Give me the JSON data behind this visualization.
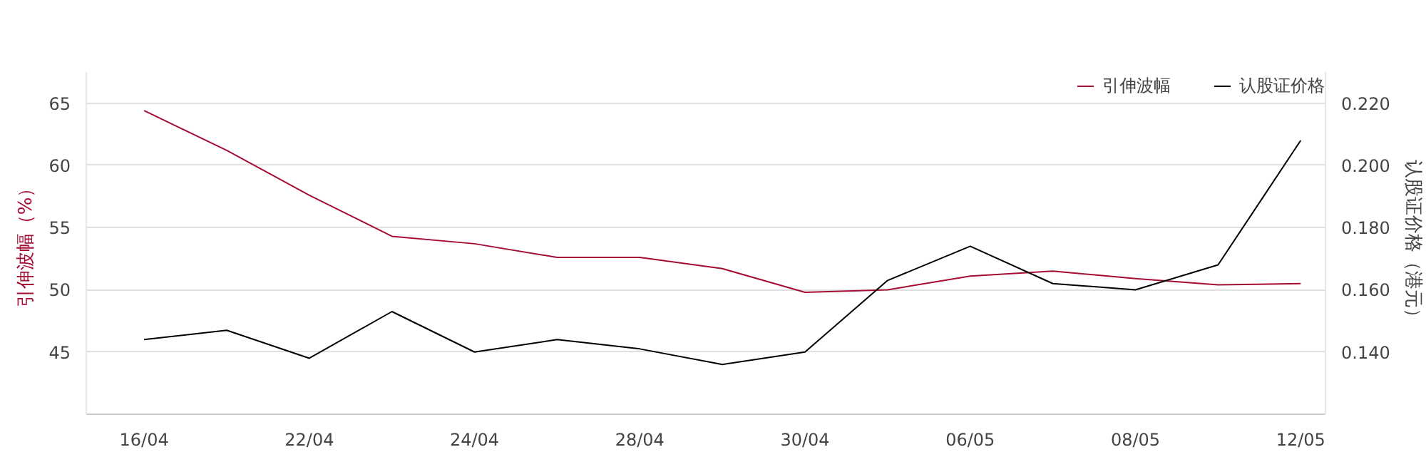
{
  "chart_data": {
    "type": "line",
    "categories": [
      "16/04",
      null,
      "22/04",
      null,
      "24/04",
      null,
      "28/04",
      null,
      "30/04",
      null,
      "06/05",
      null,
      "08/05",
      null,
      "12/05"
    ],
    "series": [
      {
        "name": "引伸波幅",
        "color": "#a50d34",
        "values": [
          64.4,
          61.2,
          57.6,
          54.3,
          53.7,
          52.6,
          52.6,
          51.7,
          49.8,
          50.0,
          51.1,
          51.5,
          50.9,
          50.4,
          50.5
        ]
      },
      {
        "name": "认股证价格",
        "color": "#000000",
        "axis": "y2",
        "values": [
          0.144,
          0.147,
          0.138,
          0.153,
          0.14,
          0.144,
          0.141,
          0.136,
          0.14,
          0.163,
          0.174,
          0.162,
          0.16,
          0.168,
          0.208
        ]
      }
    ],
    "ylabel": "引伸波幅（%）",
    "y2label": "认股证价格（港元）",
    "ylim": [
      40,
      67.5
    ],
    "yticks": [
      45,
      50,
      55,
      60,
      65
    ],
    "y2lim": [
      0.12,
      0.23
    ],
    "y2ticks": [
      {
        "value": 0.14,
        "label": "0.140"
      },
      {
        "value": 0.16,
        "label": "0.160"
      },
      {
        "value": 0.18,
        "label": "0.180"
      },
      {
        "value": 0.2,
        "label": "0.200"
      },
      {
        "value": 0.22,
        "label": "0.220"
      }
    ],
    "grid": "y",
    "legend": "top right",
    "marker": "none",
    "line_style": "solid"
  }
}
